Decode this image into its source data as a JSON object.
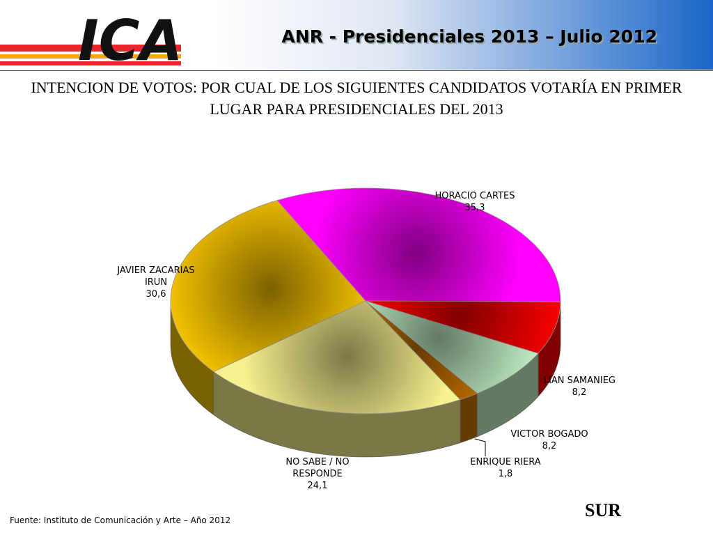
{
  "header": {
    "logo": "ICA",
    "title": "ANR - Presidenciales 2013 – Julio 2012"
  },
  "chart_data": {
    "type": "pie",
    "title": "INTENCION DE VOTOS: POR CUAL DE LOS SIGUIENTES CANDIDATOS VOTARÍA EN PRIMER LUGAR PARA PRESIDENCIALES DEL 2013",
    "categories": [
      "HORACIO CARTES",
      "LILIAN SAMANIEGO",
      "VICTOR BOGADO",
      "ENRIQUE RIERA",
      "NO SABE / NO RESPONDE",
      "JAVIER ZACARIAS IRUN"
    ],
    "values": [
      35.3,
      8.2,
      8.2,
      1.8,
      24.1,
      30.6
    ],
    "value_labels": [
      "35,3",
      "8,2",
      "8,2",
      "1,8",
      "24,1",
      "30,6"
    ],
    "colors": [
      "#ff00ff",
      "#ff0000",
      "#c4f2c8",
      "#d07800",
      "#f7f08e",
      "#f7c400"
    ]
  },
  "footer": {
    "source": "Fuente: Instituto de Comunicación y Arte – Año 2012",
    "region": "SUR"
  }
}
